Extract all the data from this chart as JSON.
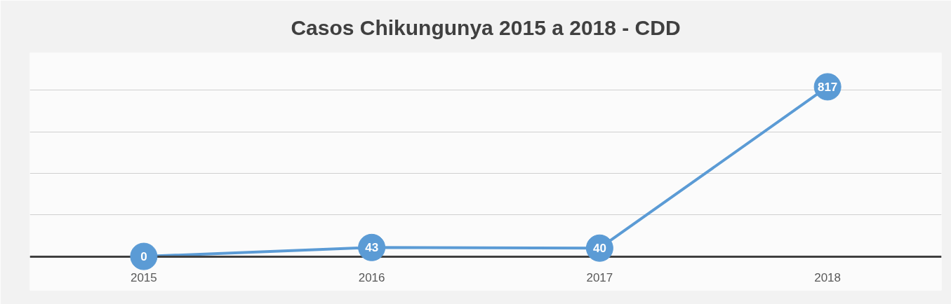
{
  "chart_data": {
    "type": "line",
    "title": "Casos Chikungunya 2015 a 2018 - CDD",
    "categories": [
      "2015",
      "2016",
      "2017",
      "2018"
    ],
    "series": [
      {
        "color": "#5b9bd5",
        "values": [
          0,
          43,
          40,
          817
        ]
      }
    ],
    "tick_labels": "x",
    "grid": "y",
    "marker": "circle",
    "line_style": "solid",
    "data_labels": true
  }
}
